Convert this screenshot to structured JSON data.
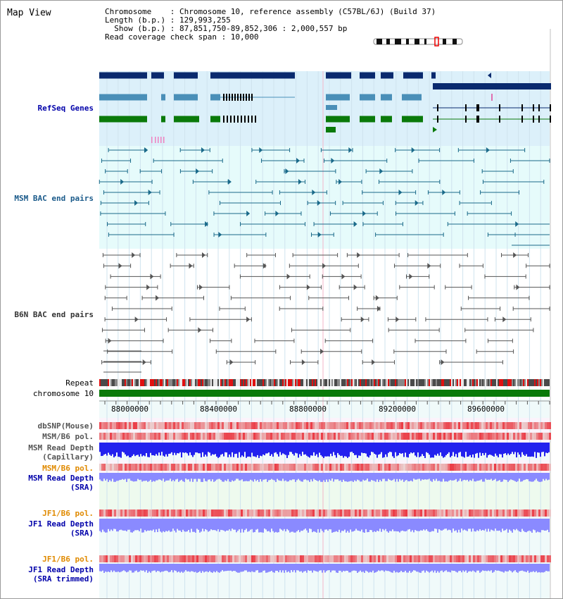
{
  "app": {
    "title": "Map View"
  },
  "header": {
    "chromosome_line": "Chromosome    : Chromosome 10, reference assembly (C57BL/6J) (Build 37)",
    "length_line": "Length (b.p.) : 129,993,255",
    "show_line": "  Show (b.p.) : 87,851,750-89,852,306 : 2,000,557 bp",
    "coverage_line": "Read coverage check span : 10,000"
  },
  "tracks": {
    "refseq": "RefSeq Genes",
    "msm_bac": "MSM BAC end pairs",
    "b6n_bac": "B6N BAC end pairs",
    "repeat": "Repeat",
    "chromosome": "chromosome 10",
    "dbsnp": "dbSNP(Mouse)",
    "msm_b6_pol_1": "MSM/B6 pol.",
    "msm_depth_cap_1": "MSM Read Depth",
    "msm_depth_cap_2": "(Capillary)",
    "msm_b6_pol_2": "MSM/B6 pol.",
    "msm_depth_sra_1": "MSM Read Depth",
    "msm_depth_sra_2": "(SRA)",
    "jf1_b6_pol_1": "JF1/B6 pol.",
    "jf1_depth_sra_1": "JF1 Read Depth",
    "jf1_depth_sra_2": "(SRA)",
    "jf1_b6_pol_2": "JF1/B6 pol.",
    "jf1_depth_trim_1": "JF1 Read Depth",
    "jf1_depth_trim_2": "(SRA trimmed)"
  },
  "ruler": {
    "ticks": [
      "88000000",
      "88400000",
      "88800000",
      "89200000",
      "89600000"
    ]
  },
  "colors": {
    "refseq_dark": "#0a2a6e",
    "refseq_light": "#4a8fb8",
    "refseq_green": "#0a7a0a",
    "msm_bac": "#1a6a8a",
    "b6n_bac": "#555555",
    "chromosome": "#0a7a0a",
    "depth_blue": "#2222ee",
    "depth_light": "#8a8aff",
    "pol_label": "#e08a00",
    "label_blue": "#0000aa",
    "label_gray": "#333333"
  }
}
